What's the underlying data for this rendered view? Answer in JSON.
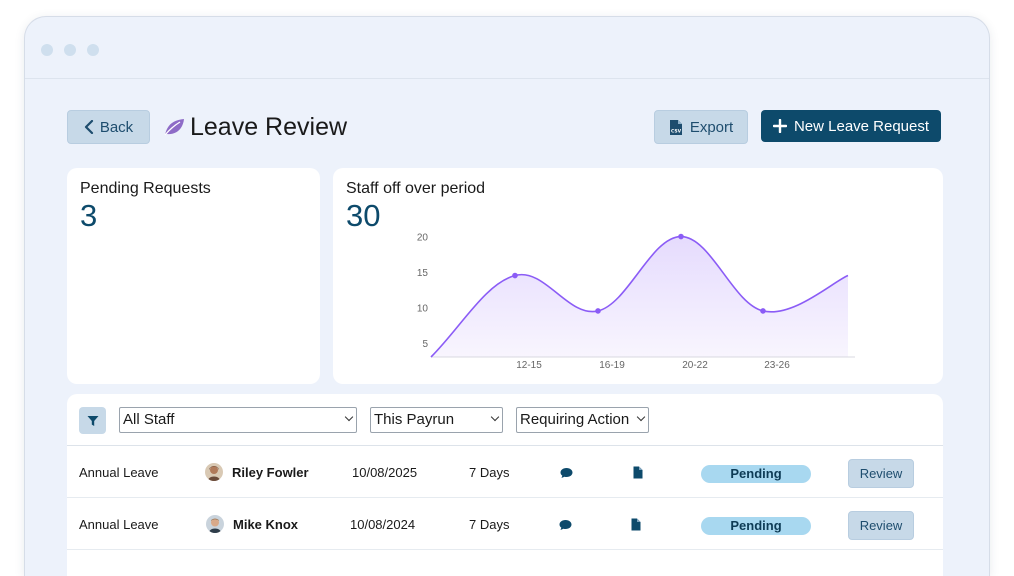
{
  "window": {
    "dots": 3
  },
  "header": {
    "back_label": "Back",
    "title": "Leave Review",
    "export_label": "Export",
    "new_request_label": "New Leave Request"
  },
  "pending_card": {
    "title": "Pending Requests",
    "value": "3"
  },
  "staff_card": {
    "title": "Staff off over period",
    "value": "30"
  },
  "chart_data": {
    "type": "line",
    "style": "smooth-area",
    "color": "#8b5cf6",
    "fill": "#ede5fd",
    "x": [
      "start",
      "12-15",
      "16-19",
      "20-22",
      "23-26",
      "end"
    ],
    "tick_labels": [
      "12-15",
      "16-19",
      "20-22",
      "23-26"
    ],
    "values": [
      3,
      14.5,
      9.5,
      20,
      9.5,
      14.5
    ],
    "marked_points": [
      "12-15",
      "16-19",
      "20-22",
      "23-26"
    ],
    "yticks": [
      5,
      10,
      15,
      20
    ],
    "ylim": [
      3,
      20.5
    ],
    "grid": false,
    "title": "",
    "xlabel": "",
    "ylabel": ""
  },
  "filters": {
    "staff": "All Staff",
    "period": "This Payrun",
    "action": "Requiring Action"
  },
  "rows": [
    {
      "type": "Annual Leave",
      "name": "Riley Fowler",
      "date": "10/08/2025",
      "days": "7 Days",
      "status": "Pending",
      "action": "Review"
    },
    {
      "type": "Annual Leave",
      "name": "Mike Knox",
      "date": "10/08/2024",
      "days": "7 Days",
      "status": "Pending",
      "action": "Review"
    }
  ],
  "colors": {
    "primary": "#0d4a6b",
    "secondary_btn": "#c7d9e8",
    "pill": "#a8d8f0",
    "accent": "#8b5cf6"
  }
}
